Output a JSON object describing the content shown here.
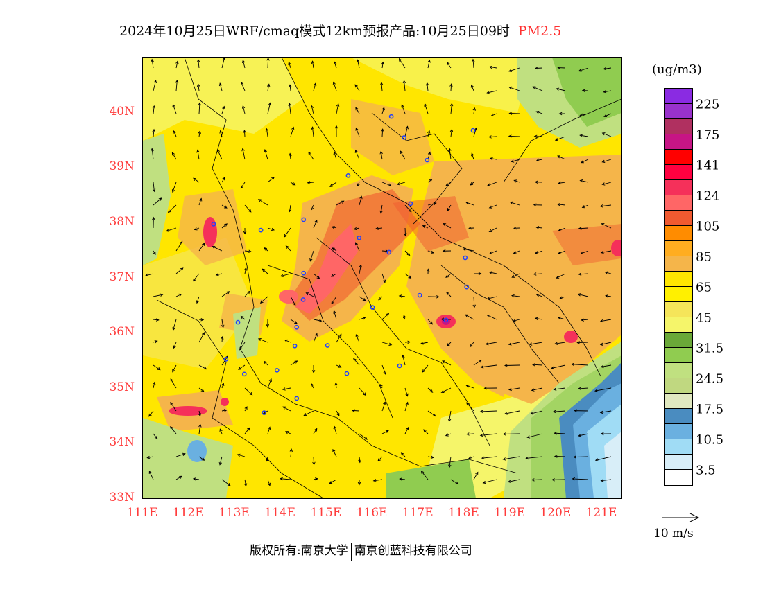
{
  "title": {
    "text": "2024年10月25日WRF/cmaq模式12km预报产品:10月25日09时",
    "variable": "PM2.5"
  },
  "map": {
    "lon_range": [
      111,
      121.4
    ],
    "lat_range": [
      33,
      41
    ],
    "lat_ticks": [
      "33N",
      "34N",
      "35N",
      "36N",
      "37N",
      "38N",
      "39N",
      "40N"
    ],
    "lon_ticks": [
      "111E",
      "112E",
      "113E",
      "114E",
      "115E",
      "116E",
      "117E",
      "118E",
      "119E",
      "120E",
      "121E"
    ],
    "cities": [
      [
        116.41,
        39.92
      ],
      [
        116.69,
        39.54
      ],
      [
        118.19,
        39.67
      ],
      [
        117.19,
        39.13
      ],
      [
        115.47,
        38.85
      ],
      [
        116.83,
        38.34
      ],
      [
        114.5,
        38.05
      ],
      [
        115.71,
        37.72
      ],
      [
        116.36,
        37.46
      ],
      [
        118.02,
        37.36
      ],
      [
        114.5,
        37.08
      ],
      [
        118.05,
        36.83
      ],
      [
        117.03,
        36.68
      ],
      [
        114.49,
        36.6
      ],
      [
        116.0,
        36.46
      ],
      [
        114.35,
        36.1
      ],
      [
        113.07,
        36.19
      ],
      [
        117.6,
        36.23
      ],
      [
        115.02,
        35.77
      ],
      [
        114.31,
        35.76
      ],
      [
        112.81,
        35.52
      ],
      [
        116.59,
        35.4
      ],
      [
        113.92,
        35.32
      ],
      [
        113.21,
        35.25
      ],
      [
        115.44,
        35.26
      ],
      [
        114.35,
        34.81
      ],
      [
        113.64,
        34.55
      ],
      [
        112.54,
        37.97
      ],
      [
        113.57,
        37.86
      ]
    ],
    "city_color": "#2040ff"
  },
  "legend": {
    "unit": "(ug/m3)",
    "colors": [
      "#8a2be2",
      "#9932cc",
      "#b03060",
      "#c71585",
      "#ff0000",
      "#ff0040",
      "#f5305a",
      "#ff6666",
      "#f05a30",
      "#ff8c00",
      "#ffad20",
      "#f5b54a",
      "#ffe600",
      "#fff000",
      "#f5e55a",
      "#f5f56a",
      "#6aa838",
      "#90cc50",
      "#c0e080",
      "#c0d880",
      "#e0e8c0",
      "#4a8cc0",
      "#6ab0e0",
      "#a0dcf5",
      "#d8eef8",
      "#ffffff"
    ],
    "labels": [
      "225",
      "175",
      "141",
      "124",
      "105",
      "85",
      "65",
      "45",
      "31.5",
      "24.5",
      "17.5",
      "10.5",
      "3.5"
    ]
  },
  "wind_reference": {
    "label": "10 m/s"
  },
  "footer": {
    "left": "版权所有:南京大学",
    "right": "南京创蓝科技有限公司"
  }
}
